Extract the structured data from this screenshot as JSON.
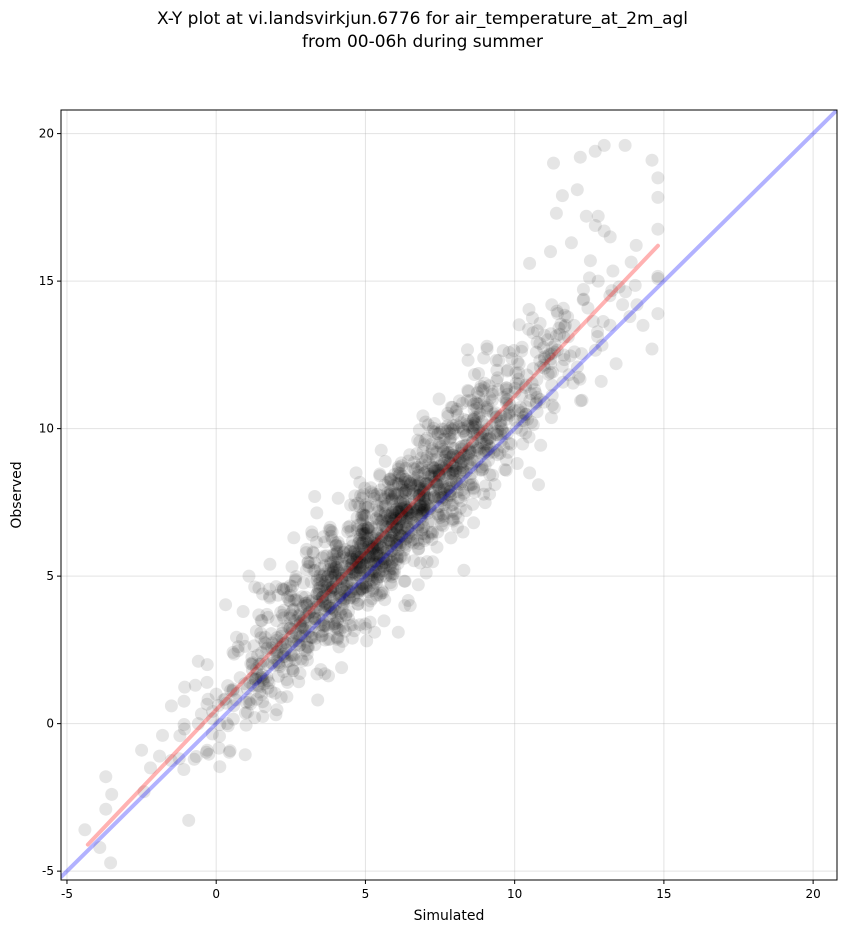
{
  "chart_data": {
    "type": "scatter",
    "title_line1": "X-Y plot at vi.landsvirkjun.6776 for air_temperature_at_2m_agl",
    "title_line2": "from 00-06h during summer",
    "xlabel": "Simulated",
    "ylabel": "Observed",
    "xlim": [
      -5.2,
      20.8
    ],
    "ylim": [
      -5.3,
      20.8
    ],
    "xticks": [
      -5,
      0,
      5,
      10,
      15,
      20
    ],
    "yticks": [
      -5,
      0,
      5,
      10,
      15,
      20
    ],
    "grid": true,
    "point_color": "#000000",
    "point_opacity": 0.1,
    "point_count": 1600,
    "point_distribution": {
      "x_mean": 6.0,
      "x_sd": 2.9,
      "x_range": [
        -4.4,
        14.8
      ],
      "relationship": "observed ≈ 1.075*simulated + 0.3",
      "residual_sd": 1.1
    },
    "highlight_points": [
      {
        "x": 11.3,
        "y": 19.0
      },
      {
        "x": 12.2,
        "y": 19.2
      },
      {
        "x": 12.7,
        "y": 19.4
      },
      {
        "x": 13.0,
        "y": 19.6
      },
      {
        "x": 13.7,
        "y": 19.6
      },
      {
        "x": 14.6,
        "y": 19.1
      },
      {
        "x": 14.8,
        "y": 18.5
      },
      {
        "x": 12.1,
        "y": 18.1
      },
      {
        "x": 11.6,
        "y": 17.9
      },
      {
        "x": 12.4,
        "y": 17.2
      },
      {
        "x": 12.8,
        "y": 17.2
      },
      {
        "x": 11.4,
        "y": 17.3
      },
      {
        "x": 13.0,
        "y": 16.7
      },
      {
        "x": 13.2,
        "y": 16.5
      },
      {
        "x": 11.9,
        "y": 16.3
      },
      {
        "x": 11.2,
        "y": 16.0
      },
      {
        "x": 10.5,
        "y": 15.6
      },
      {
        "x": 12.8,
        "y": 15.0
      },
      {
        "x": 13.5,
        "y": 14.8
      },
      {
        "x": 14.1,
        "y": 14.2
      },
      {
        "x": 14.8,
        "y": 13.9
      },
      {
        "x": 14.3,
        "y": 13.5
      },
      {
        "x": 14.6,
        "y": 12.7
      },
      {
        "x": 13.4,
        "y": 12.2
      },
      {
        "x": 12.9,
        "y": 11.6
      },
      {
        "x": 11.7,
        "y": 13.5
      },
      {
        "x": 12.0,
        "y": 12.6
      },
      {
        "x": 11.2,
        "y": 12.2
      },
      {
        "x": 10.8,
        "y": 8.1
      },
      {
        "x": 10.5,
        "y": 8.5
      },
      {
        "x": -3.9,
        "y": -4.2
      },
      {
        "x": -4.4,
        "y": -3.6
      },
      {
        "x": -3.7,
        "y": -2.9
      },
      {
        "x": -3.5,
        "y": -2.4
      },
      {
        "x": -3.7,
        "y": -1.8
      },
      {
        "x": -2.5,
        "y": -0.9
      },
      {
        "x": -2.2,
        "y": -1.5
      },
      {
        "x": -1.9,
        "y": -1.1
      },
      {
        "x": -1.8,
        "y": -0.4
      },
      {
        "x": -1.5,
        "y": 0.6
      },
      {
        "x": -0.6,
        "y": 0.0
      },
      {
        "x": -0.3,
        "y": -0.9
      },
      {
        "x": -0.7,
        "y": 1.3
      },
      {
        "x": -0.3,
        "y": 2.0
      },
      {
        "x": 0.0,
        "y": 1.0
      },
      {
        "x": 0.9,
        "y": 3.8
      },
      {
        "x": 1.1,
        "y": 5.0
      },
      {
        "x": 1.8,
        "y": 5.4
      },
      {
        "x": 2.6,
        "y": 6.3
      },
      {
        "x": 3.2,
        "y": 6.5
      },
      {
        "x": 3.3,
        "y": 7.7
      },
      {
        "x": 2.0,
        "y": 0.3
      },
      {
        "x": 3.4,
        "y": 0.8
      },
      {
        "x": 4.2,
        "y": 1.9
      },
      {
        "x": 6.1,
        "y": 3.1
      },
      {
        "x": 6.5,
        "y": 4.0
      },
      {
        "x": 8.3,
        "y": 5.2
      }
    ],
    "series": [
      {
        "type": "line",
        "color": "#ff0000",
        "opacity": 0.3,
        "points": [
          [
            -4.3,
            -4.1
          ],
          [
            14.8,
            16.2
          ]
        ]
      },
      {
        "type": "line",
        "color": "#0000ff",
        "opacity": 0.3,
        "points": [
          [
            -5.2,
            -5.2
          ],
          [
            20.8,
            20.8
          ]
        ]
      }
    ]
  }
}
